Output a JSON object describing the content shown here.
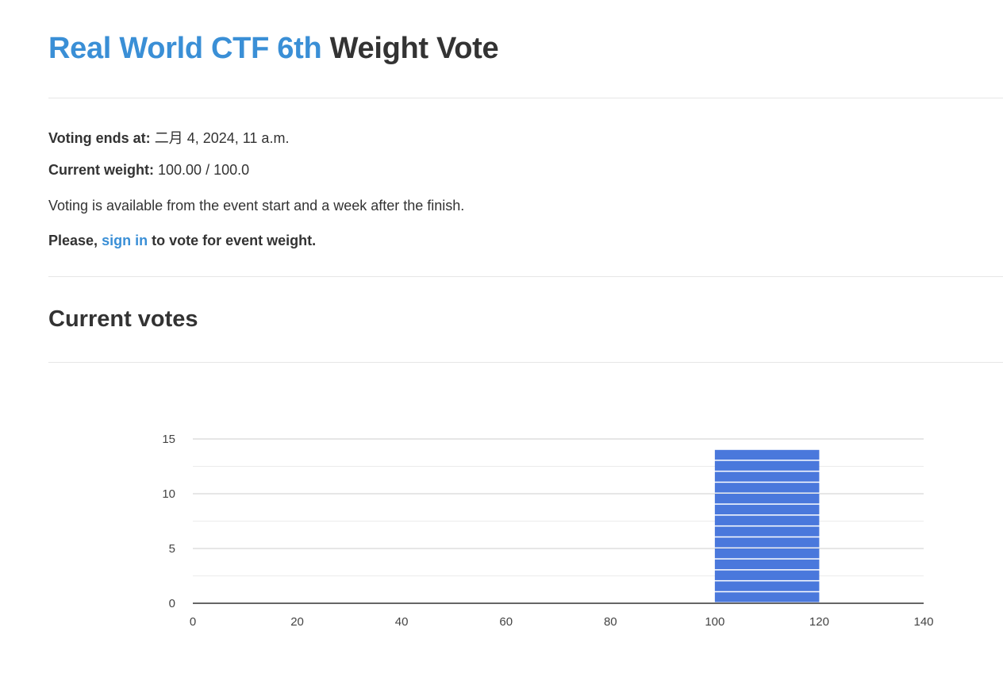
{
  "title": {
    "event_name": "Real World CTF 6th",
    "suffix": "Weight Vote"
  },
  "info": {
    "voting_ends_label": "Voting ends at:",
    "voting_ends_value": "二月 4, 2024, 11 a.m.",
    "current_weight_label": "Current weight:",
    "current_weight_value": "100.00 / 100.0",
    "availability_note": "Voting is available from the event start and a week after the finish.",
    "signin_prefix": "Please,",
    "signin_link": "sign in",
    "signin_suffix": "to vote for event weight."
  },
  "section": {
    "current_votes_title": "Current votes"
  },
  "colors": {
    "link": "#3a8fd6",
    "bar": "#4a78dc"
  },
  "chart_data": {
    "type": "bar",
    "xlim": [
      0,
      140
    ],
    "ylim": [
      0,
      15
    ],
    "xticks": [
      0,
      20,
      40,
      60,
      80,
      100,
      120,
      140
    ],
    "yticks": [
      0,
      5,
      10,
      15
    ],
    "bins": [
      {
        "x0": 100,
        "x1": 120,
        "value": 14
      }
    ],
    "grid": true,
    "legend": "none"
  }
}
